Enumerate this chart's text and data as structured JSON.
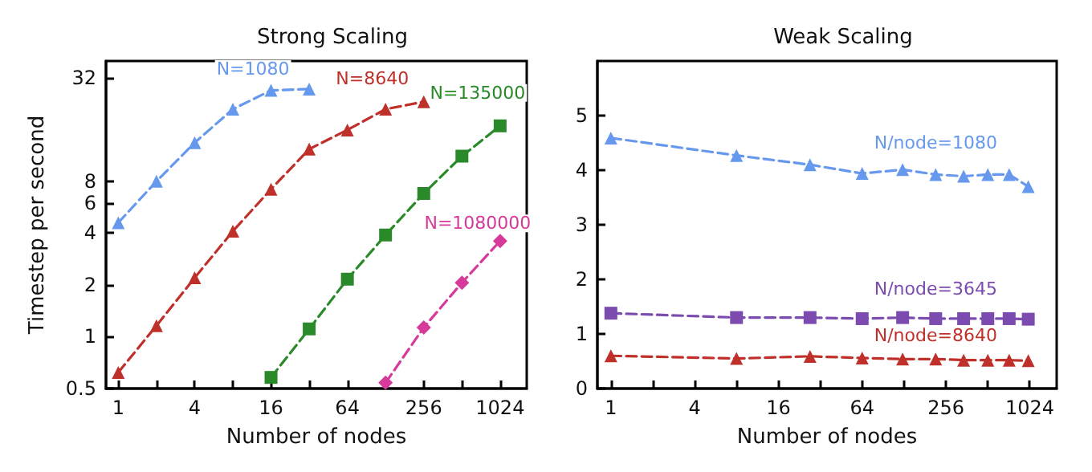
{
  "chart_data": [
    {
      "type": "line",
      "title": "Strong Scaling",
      "xlabel": "Number of nodes",
      "ylabel": "Timestep per second",
      "log": "xy",
      "grid": false,
      "legend": false,
      "line_style": "dashed",
      "xlim": [
        0.8,
        1660
      ],
      "ylim": [
        0.5,
        40
      ],
      "xticks": [
        1,
        {
          "value": 2,
          "label": null
        },
        4,
        {
          "value": 8,
          "label": null
        },
        16,
        {
          "value": 32,
          "label": null
        },
        64,
        {
          "value": 128,
          "label": null
        },
        256,
        {
          "value": 512,
          "label": null
        },
        1024
      ],
      "yticks": [
        0.5,
        1,
        2,
        4,
        6,
        8,
        32
      ],
      "series": [
        {
          "name": "N=1080",
          "color": "#6699ee",
          "marker": "triangle",
          "x": [
            1,
            2,
            4,
            8,
            16,
            32
          ],
          "values": [
            4.6,
            8.0,
            13.4,
            21,
            27,
            27.5
          ]
        },
        {
          "name": "N=8640",
          "color": "#c0302a",
          "marker": "triangle",
          "x": [
            1,
            2,
            4,
            8,
            16,
            32,
            64,
            128,
            256
          ],
          "values": [
            0.62,
            1.16,
            2.2,
            4.1,
            7.2,
            12.3,
            15.9,
            21,
            23.2
          ]
        },
        {
          "name": "N=135000",
          "color": "#2a8a2a",
          "marker": "square",
          "x": [
            16,
            32,
            64,
            128,
            256,
            512,
            1024
          ],
          "values": [
            0.58,
            1.11,
            2.16,
            3.9,
            6.8,
            11.2,
            16.8
          ]
        },
        {
          "name": "N=1080000",
          "color": "#d63a9a",
          "marker": "diamond",
          "x": [
            128,
            256,
            512,
            1024
          ],
          "values": [
            0.54,
            1.13,
            2.06,
            3.6
          ]
        }
      ]
    },
    {
      "type": "line",
      "title": "Weak Scaling",
      "xlabel": "Number of nodes",
      "log": "x",
      "grid": false,
      "legend": false,
      "line_style": "dashed",
      "xlim": [
        0.8,
        1600
      ],
      "ylim": [
        0,
        6
      ],
      "xticks": [
        1,
        {
          "value": 2,
          "label": null
        },
        4,
        {
          "value": 8,
          "label": null
        },
        16,
        {
          "value": 32,
          "label": null
        },
        64,
        {
          "value": 128,
          "label": null
        },
        256,
        {
          "value": 512,
          "label": null
        },
        1024
      ],
      "yticks": [
        0,
        1,
        2,
        3,
        4,
        5
      ],
      "series": [
        {
          "name": "N/node=1080",
          "color": "#6699ee",
          "marker": "triangle",
          "x": [
            1,
            8,
            27,
            64,
            125,
            216,
            343,
            512,
            729,
            1000
          ],
          "values": [
            4.59,
            4.27,
            4.1,
            3.94,
            4.01,
            3.92,
            3.89,
            3.92,
            3.92,
            3.7
          ]
        },
        {
          "name": "N/node=3645",
          "color": "#7b4bb0",
          "marker": "square",
          "x": [
            1,
            8,
            27,
            64,
            125,
            216,
            343,
            512,
            729,
            1000
          ],
          "values": [
            1.38,
            1.3,
            1.3,
            1.28,
            1.3,
            1.28,
            1.28,
            1.28,
            1.28,
            1.27
          ]
        },
        {
          "name": "N/node=8640",
          "color": "#c0302a",
          "marker": "triangle",
          "x": [
            1,
            8,
            27,
            64,
            125,
            216,
            343,
            512,
            729,
            1000
          ],
          "values": [
            0.6,
            0.55,
            0.59,
            0.56,
            0.54,
            0.54,
            0.52,
            0.52,
            0.52,
            0.51
          ]
        }
      ]
    }
  ]
}
